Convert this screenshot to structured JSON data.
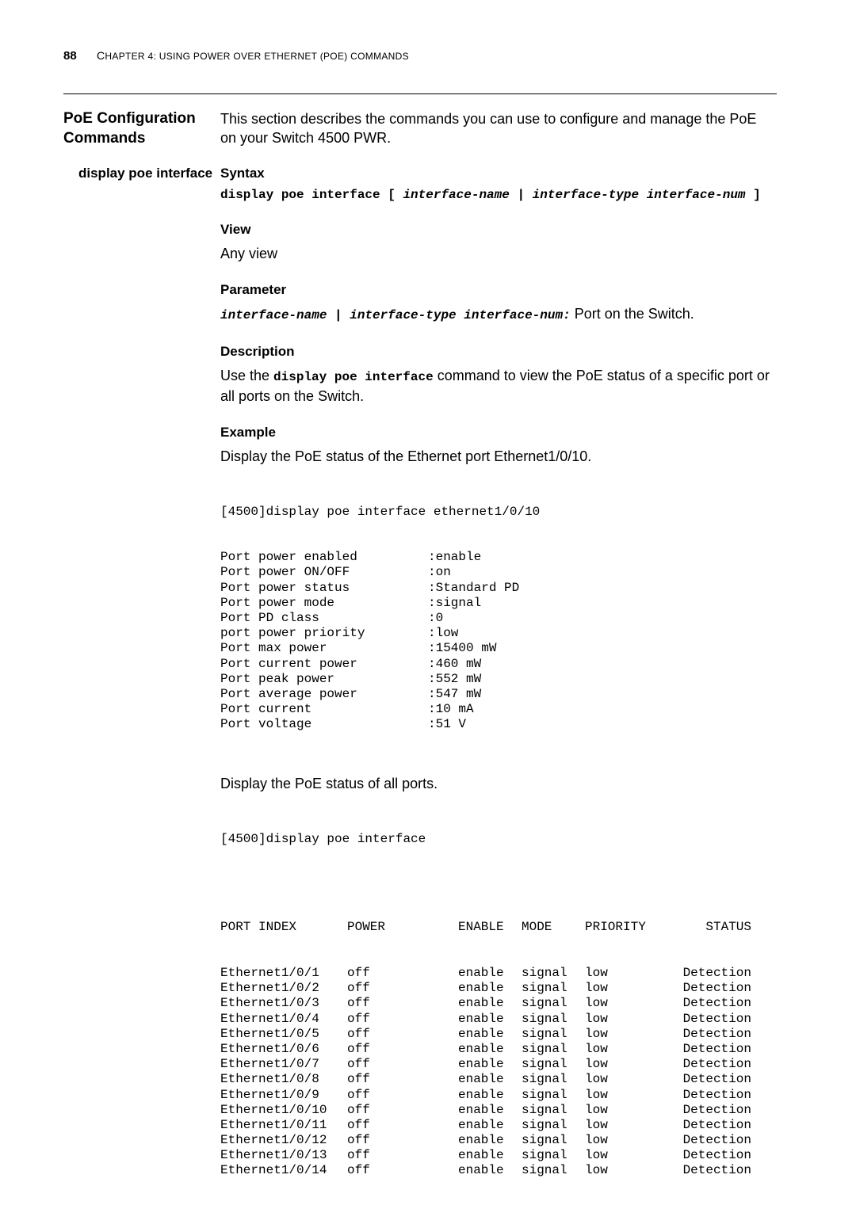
{
  "page_number": "88",
  "chapter_header_prefix": "C",
  "chapter_header_rest": "HAPTER 4: USING POWER OVER ETHERNET (POE) COMMANDS",
  "section_title": "PoE Configuration Commands",
  "section_intro": "This section describes the commands you can use to configure and manage the PoE on your Switch 4500 PWR.",
  "subcommand": "display poe interface",
  "syntax": {
    "heading": "Syntax",
    "cmd_bold": "display poe interface [ ",
    "cmd_ital1": "interface-name",
    "cmd_sep": " | ",
    "cmd_ital2": "interface-type interface-num",
    "cmd_close": " ]"
  },
  "view": {
    "heading": "View",
    "text": "Any view"
  },
  "parameter": {
    "heading": "Parameter",
    "ital1": "interface-name",
    "sep": " | ",
    "ital2": "interface-type interface-num:",
    "tail": " Port on the Switch."
  },
  "description": {
    "heading": "Description",
    "pre": "Use the ",
    "cmd": "display poe interface",
    "post": " command to view the PoE status of a specific port or all ports on the Switch."
  },
  "example": {
    "heading": "Example",
    "intro1": "Display the PoE status of the Ethernet port Ethernet1/0/10.",
    "prompt1_pre": "[4500]",
    "prompt1_cmd": "display poe interface ethernet1/0/10",
    "rows1": [
      {
        "label": "Port power enabled",
        "value": ":enable"
      },
      {
        "label": "Port power ON/OFF",
        "value": ":on"
      },
      {
        "label": "Port power status",
        "value": ":Standard PD"
      },
      {
        "label": "Port power mode",
        "value": ":signal"
      },
      {
        "label": "Port PD class",
        "value": ":0"
      },
      {
        "label": "port power priority",
        "value": ":low"
      },
      {
        "label": "Port max power",
        "value": ":15400 mW"
      },
      {
        "label": "Port current power",
        "value": ":460 mW"
      },
      {
        "label": "Port peak power",
        "value": ":552 mW"
      },
      {
        "label": "Port average power",
        "value": ":547 mW"
      },
      {
        "label": "Port current",
        "value": ":10 mA"
      },
      {
        "label": "Port voltage",
        "value": ":51 V"
      }
    ],
    "intro2": "Display the PoE status of all ports.",
    "prompt2_pre": "[4500]",
    "prompt2_cmd": "display poe interface",
    "table_header": {
      "port": "PORT INDEX",
      "power": "POWER",
      "enable": "ENABLE",
      "mode": "MODE",
      "priority": "PRIORITY",
      "status": "STATUS"
    },
    "table_rows": [
      {
        "port": "Ethernet1/0/1",
        "power": "off",
        "enable": "enable",
        "mode": "signal",
        "priority": "low",
        "status": "Detection"
      },
      {
        "port": "Ethernet1/0/2",
        "power": "off",
        "enable": "enable",
        "mode": "signal",
        "priority": "low",
        "status": "Detection"
      },
      {
        "port": "Ethernet1/0/3",
        "power": "off",
        "enable": "enable",
        "mode": "signal",
        "priority": "low",
        "status": "Detection"
      },
      {
        "port": "Ethernet1/0/4",
        "power": "off",
        "enable": "enable",
        "mode": "signal",
        "priority": "low",
        "status": "Detection"
      },
      {
        "port": "Ethernet1/0/5",
        "power": "off",
        "enable": "enable",
        "mode": "signal",
        "priority": "low",
        "status": "Detection"
      },
      {
        "port": "Ethernet1/0/6",
        "power": "off",
        "enable": "enable",
        "mode": "signal",
        "priority": "low",
        "status": "Detection"
      },
      {
        "port": "Ethernet1/0/7",
        "power": "off",
        "enable": "enable",
        "mode": "signal",
        "priority": "low",
        "status": "Detection"
      },
      {
        "port": "Ethernet1/0/8",
        "power": "off",
        "enable": "enable",
        "mode": "signal",
        "priority": "low",
        "status": "Detection"
      },
      {
        "port": "Ethernet1/0/9",
        "power": "off",
        "enable": "enable",
        "mode": "signal",
        "priority": "low",
        "status": "Detection"
      },
      {
        "port": "Ethernet1/0/10",
        "power": "off",
        "enable": "enable",
        "mode": "signal",
        "priority": "low",
        "status": "Detection"
      },
      {
        "port": "Ethernet1/0/11",
        "power": "off",
        "enable": "enable",
        "mode": "signal",
        "priority": "low",
        "status": "Detection"
      },
      {
        "port": "Ethernet1/0/12",
        "power": "off",
        "enable": "enable",
        "mode": "signal",
        "priority": "low",
        "status": "Detection"
      },
      {
        "port": "Ethernet1/0/13",
        "power": "off",
        "enable": "enable",
        "mode": "signal",
        "priority": "low",
        "status": "Detection"
      },
      {
        "port": "Ethernet1/0/14",
        "power": "off",
        "enable": "enable",
        "mode": "signal",
        "priority": "low",
        "status": "Detection"
      }
    ]
  }
}
